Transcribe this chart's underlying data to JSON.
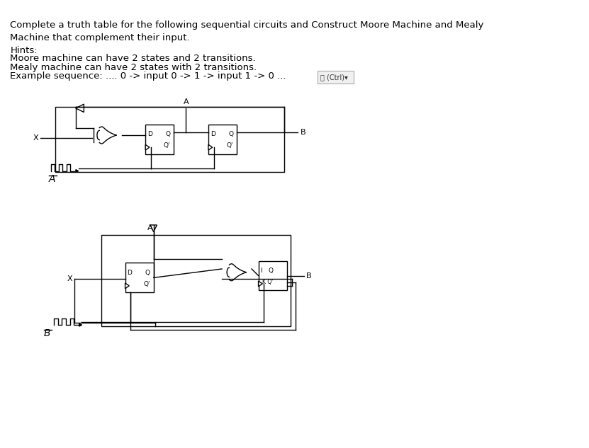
{
  "title_text": "Complete a truth table for the following sequential circuits and Construct Moore Machine and Mealy\nMachine that complement their input.\nHints:",
  "body_text1": "Moore machine can have 2 states and 2 transitions.",
  "body_text2": "Mealy machine can have 2 states with 2 transitions.",
  "body_text3": "Example sequence: .... 0 -> input 0 -> 1 -> input 1 -> 0 ...",
  "label_A": "A",
  "label_B": "B",
  "bg_color": "#ffffff",
  "line_color": "#000000",
  "font_color": "#000000",
  "font_size": 9.5
}
